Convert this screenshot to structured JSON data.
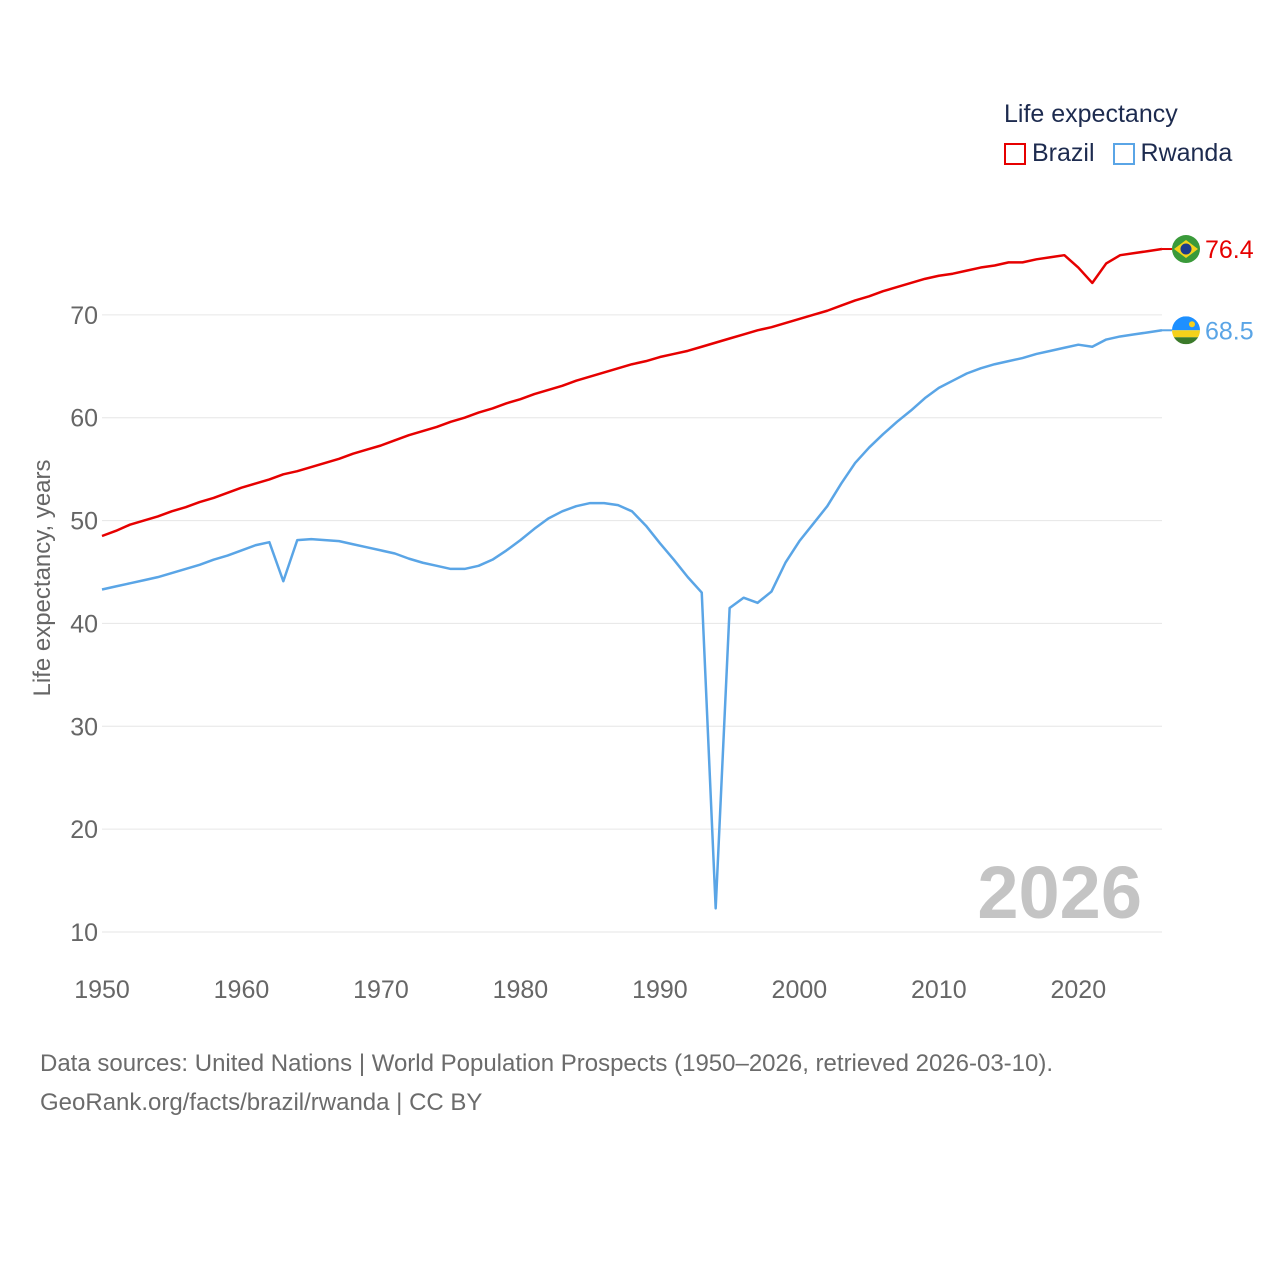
{
  "legend": {
    "title": "Life expectancy"
  },
  "current_year": "2026",
  "footer": {
    "line1": "Data sources: United Nations | World Population Prospects (1950–2026, retrieved 2026-03-10).",
    "line2": "GeoRank.org/facts/brazil/rwanda | CC BY"
  },
  "chart_data": {
    "type": "line",
    "title": "Life expectancy",
    "xlabel": "",
    "ylabel": "Life expectancy, years",
    "xlim": [
      1950,
      2026
    ],
    "ylim": [
      10,
      80
    ],
    "yticks": [
      10,
      20,
      30,
      40,
      50,
      60,
      70
    ],
    "xticks": [
      1950,
      1960,
      1970,
      1980,
      1990,
      2000,
      2010,
      2020
    ],
    "grid": true,
    "legend_position": "top-right",
    "x": [
      1950,
      1951,
      1952,
      1953,
      1954,
      1955,
      1956,
      1957,
      1958,
      1959,
      1960,
      1961,
      1962,
      1963,
      1964,
      1965,
      1966,
      1967,
      1968,
      1969,
      1970,
      1971,
      1972,
      1973,
      1974,
      1975,
      1976,
      1977,
      1978,
      1979,
      1980,
      1981,
      1982,
      1983,
      1984,
      1985,
      1986,
      1987,
      1988,
      1989,
      1990,
      1991,
      1992,
      1993,
      1994,
      1995,
      1996,
      1997,
      1998,
      1999,
      2000,
      2001,
      2002,
      2003,
      2004,
      2005,
      2006,
      2007,
      2008,
      2009,
      2010,
      2011,
      2012,
      2013,
      2014,
      2015,
      2016,
      2017,
      2018,
      2019,
      2020,
      2021,
      2022,
      2023,
      2024,
      2025,
      2026
    ],
    "series": [
      {
        "name": "Brazil",
        "color": "#e60000",
        "end_label": "76.4",
        "flag": "brazil-flag",
        "values": [
          48.5,
          49.0,
          49.6,
          50.0,
          50.4,
          50.9,
          51.3,
          51.8,
          52.2,
          52.7,
          53.2,
          53.6,
          54.0,
          54.5,
          54.8,
          55.2,
          55.6,
          56.0,
          56.5,
          56.9,
          57.3,
          57.8,
          58.3,
          58.7,
          59.1,
          59.6,
          60.0,
          60.5,
          60.9,
          61.4,
          61.8,
          62.3,
          62.7,
          63.1,
          63.6,
          64.0,
          64.4,
          64.8,
          65.2,
          65.5,
          65.9,
          66.2,
          66.5,
          66.9,
          67.3,
          67.7,
          68.1,
          68.5,
          68.8,
          69.2,
          69.6,
          70.0,
          70.4,
          70.9,
          71.4,
          71.8,
          72.3,
          72.7,
          73.1,
          73.5,
          73.8,
          74.0,
          74.3,
          74.6,
          74.8,
          75.1,
          75.1,
          75.4,
          75.6,
          75.8,
          74.6,
          73.1,
          75.0,
          75.8,
          76.0,
          76.2,
          76.4
        ]
      },
      {
        "name": "Rwanda",
        "color": "#5aa5e6",
        "end_label": "68.5",
        "flag": "rwanda-flag",
        "values": [
          43.3,
          43.6,
          43.9,
          44.2,
          44.5,
          44.9,
          45.3,
          45.7,
          46.2,
          46.6,
          47.1,
          47.6,
          47.9,
          44.1,
          48.1,
          48.2,
          48.1,
          48.0,
          47.7,
          47.4,
          47.1,
          46.8,
          46.3,
          45.9,
          45.6,
          45.3,
          45.3,
          45.6,
          46.2,
          47.1,
          48.1,
          49.2,
          50.2,
          50.9,
          51.4,
          51.7,
          51.7,
          51.5,
          50.9,
          49.5,
          47.8,
          46.2,
          44.5,
          43.0,
          12.3,
          41.5,
          42.5,
          42.0,
          43.1,
          45.9,
          48.0,
          49.7,
          51.4,
          53.6,
          55.6,
          57.1,
          58.4,
          59.6,
          60.7,
          61.9,
          62.9,
          63.6,
          64.3,
          64.8,
          65.2,
          65.5,
          65.8,
          66.2,
          66.5,
          66.8,
          67.1,
          66.9,
          67.6,
          67.9,
          68.1,
          68.3,
          68.5
        ]
      }
    ]
  }
}
